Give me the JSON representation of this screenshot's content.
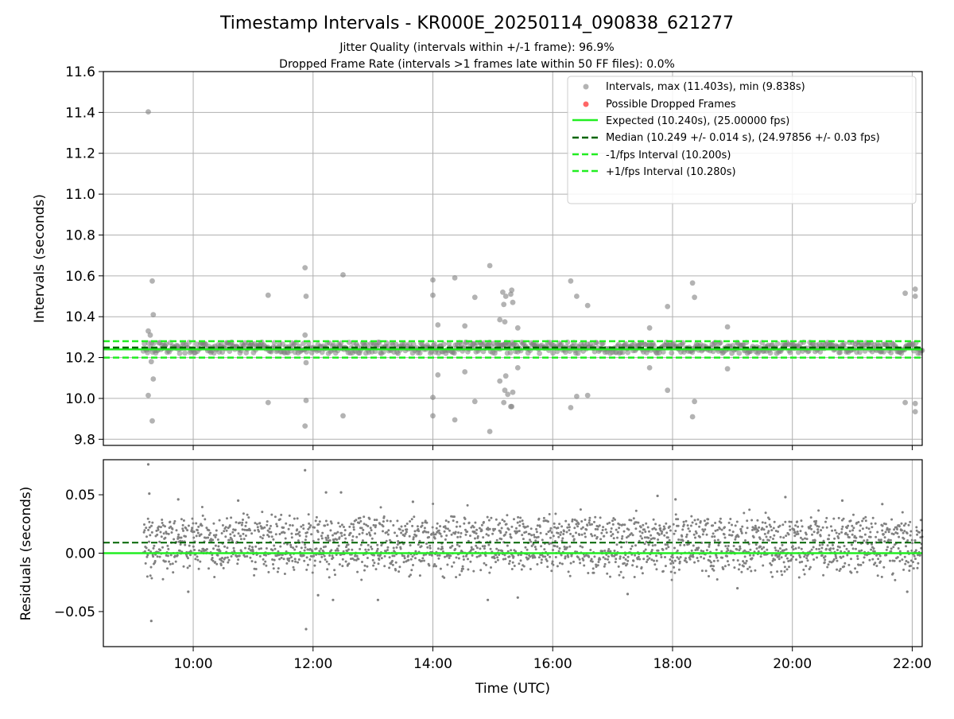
{
  "title": "Timestamp Intervals - KR000E_20250114_090838_621277",
  "subtitle_1": "Jitter Quality (intervals within +/-1 frame): 96.9%",
  "subtitle_2": "Dropped Frame Rate (intervals >1 frames late within 50 FF files): 0.0%",
  "colors": {
    "points": "#808080",
    "dropped": "#ff6666",
    "expected": "#22ee22",
    "median": "#006400",
    "bounds": "#22ee22",
    "grid": "#b0b0b0"
  },
  "chart_data": [
    {
      "type": "scatter",
      "panel": "top",
      "xlabel": "",
      "ylabel": "Intervals (seconds)",
      "xlim": [
        "08:30",
        "22:10"
      ],
      "ylim": [
        9.77,
        11.6
      ],
      "yticks": [
        "9.8",
        "10.0",
        "10.2",
        "10.4",
        "10.6",
        "10.8",
        "11.0",
        "11.2",
        "11.4",
        "11.6"
      ],
      "grid": true,
      "legend_position": "top-right",
      "legend": [
        "Intervals, max (11.403s), min (9.838s)",
        "Possible Dropped Frames",
        "Expected (10.240s), (25.00000 fps)",
        "Median (10.249 +/- 0.014 s), (24.97856 +/- 0.03 fps)",
        "-1/fps Interval (10.200s)",
        "+1/fps Interval (10.280s)"
      ],
      "reference_lines": {
        "expected": 10.24,
        "median": 10.249,
        "minus_one_fps": 10.2,
        "plus_one_fps": 10.28
      },
      "dense_band": {
        "x_start": "09:10",
        "x_end": "22:10",
        "y_low": 10.22,
        "y_high": 10.275
      },
      "outliers": [
        {
          "x": "09:15",
          "y": 11.403
        },
        {
          "x": "09:15",
          "y": 10.33
        },
        {
          "x": "09:17",
          "y": 10.31
        },
        {
          "x": "09:18",
          "y": 10.18
        },
        {
          "x": "09:15",
          "y": 10.015
        },
        {
          "x": "09:19",
          "y": 10.575
        },
        {
          "x": "09:20",
          "y": 10.41
        },
        {
          "x": "09:20",
          "y": 10.095
        },
        {
          "x": "09:19",
          "y": 9.89
        },
        {
          "x": "11:15",
          "y": 10.505
        },
        {
          "x": "11:15",
          "y": 9.98
        },
        {
          "x": "11:52",
          "y": 10.64
        },
        {
          "x": "11:53",
          "y": 10.5
        },
        {
          "x": "11:52",
          "y": 10.31
        },
        {
          "x": "11:53",
          "y": 10.175
        },
        {
          "x": "11:53",
          "y": 9.99
        },
        {
          "x": "11:52",
          "y": 9.865
        },
        {
          "x": "12:30",
          "y": 10.605
        },
        {
          "x": "12:30",
          "y": 9.915
        },
        {
          "x": "14:00",
          "y": 10.58
        },
        {
          "x": "14:00",
          "y": 10.505
        },
        {
          "x": "14:05",
          "y": 10.36
        },
        {
          "x": "14:05",
          "y": 10.115
        },
        {
          "x": "14:00",
          "y": 10.005
        },
        {
          "x": "14:00",
          "y": 9.915
        },
        {
          "x": "14:22",
          "y": 10.59
        },
        {
          "x": "14:22",
          "y": 9.895
        },
        {
          "x": "14:32",
          "y": 10.355
        },
        {
          "x": "14:32",
          "y": 10.13
        },
        {
          "x": "14:42",
          "y": 10.495
        },
        {
          "x": "14:42",
          "y": 9.985
        },
        {
          "x": "14:57",
          "y": 10.65
        },
        {
          "x": "14:57",
          "y": 9.838
        },
        {
          "x": "15:07",
          "y": 10.385
        },
        {
          "x": "15:07",
          "y": 10.085
        },
        {
          "x": "15:10",
          "y": 10.52
        },
        {
          "x": "15:11",
          "y": 10.46
        },
        {
          "x": "15:12",
          "y": 10.375
        },
        {
          "x": "15:13",
          "y": 10.5
        },
        {
          "x": "15:13",
          "y": 10.11
        },
        {
          "x": "15:12",
          "y": 10.04
        },
        {
          "x": "15:11",
          "y": 9.98
        },
        {
          "x": "15:15",
          "y": 10.02
        },
        {
          "x": "15:18",
          "y": 10.51
        },
        {
          "x": "15:19",
          "y": 10.53
        },
        {
          "x": "15:20",
          "y": 10.47
        },
        {
          "x": "15:18",
          "y": 9.96
        },
        {
          "x": "15:19",
          "y": 9.96
        },
        {
          "x": "15:20",
          "y": 10.03
        },
        {
          "x": "15:25",
          "y": 10.345
        },
        {
          "x": "15:25",
          "y": 10.15
        },
        {
          "x": "16:18",
          "y": 10.575
        },
        {
          "x": "16:18",
          "y": 9.955
        },
        {
          "x": "16:24",
          "y": 10.5
        },
        {
          "x": "16:24",
          "y": 10.01
        },
        {
          "x": "16:35",
          "y": 10.455
        },
        {
          "x": "16:35",
          "y": 10.015
        },
        {
          "x": "17:37",
          "y": 10.345
        },
        {
          "x": "17:37",
          "y": 10.15
        },
        {
          "x": "17:55",
          "y": 10.45
        },
        {
          "x": "17:55",
          "y": 10.04
        },
        {
          "x": "18:20",
          "y": 10.565
        },
        {
          "x": "18:22",
          "y": 10.495
        },
        {
          "x": "18:22",
          "y": 9.985
        },
        {
          "x": "18:20",
          "y": 9.91
        },
        {
          "x": "18:55",
          "y": 10.35
        },
        {
          "x": "18:55",
          "y": 10.145
        },
        {
          "x": "21:53",
          "y": 10.515
        },
        {
          "x": "21:53",
          "y": 9.98
        },
        {
          "x": "22:03",
          "y": 10.535
        },
        {
          "x": "22:03",
          "y": 10.5
        },
        {
          "x": "22:03",
          "y": 9.975
        },
        {
          "x": "22:03",
          "y": 9.935
        }
      ]
    },
    {
      "type": "scatter",
      "panel": "bottom",
      "xlabel": "Time (UTC)",
      "ylabel": "Residuals (seconds)",
      "xlim": [
        "08:30",
        "22:10"
      ],
      "ylim": [
        -0.08,
        0.08
      ],
      "yticks": [
        "−0.05",
        "0.00",
        "0.05"
      ],
      "xticks": [
        "10:00",
        "12:00",
        "14:00",
        "16:00",
        "18:00",
        "20:00",
        "22:00"
      ],
      "grid": true,
      "reference_lines": {
        "expected": 0.0,
        "median": 0.009
      },
      "residual_bands": [
        {
          "center": 0.02,
          "spread": 0.006,
          "share": 0.45
        },
        {
          "center": 0.0,
          "spread": 0.004,
          "share": 0.3
        },
        {
          "center": -0.01,
          "spread": 0.005,
          "share": 0.15
        },
        {
          "center": 0.01,
          "spread": 0.012,
          "share": 0.1
        }
      ],
      "outliers": [
        {
          "x": "09:15",
          "y": 0.076
        },
        {
          "x": "09:16",
          "y": 0.051
        },
        {
          "x": "09:18",
          "y": -0.058
        },
        {
          "x": "11:52",
          "y": 0.071
        },
        {
          "x": "11:53",
          "y": -0.065
        },
        {
          "x": "12:13",
          "y": 0.052
        },
        {
          "x": "12:28",
          "y": 0.052
        },
        {
          "x": "12:05",
          "y": -0.036
        },
        {
          "x": "12:20",
          "y": -0.04
        },
        {
          "x": "13:05",
          "y": -0.04
        },
        {
          "x": "14:55",
          "y": -0.04
        },
        {
          "x": "15:25",
          "y": -0.038
        },
        {
          "x": "17:15",
          "y": -0.035
        },
        {
          "x": "17:45",
          "y": 0.049
        },
        {
          "x": "18:03",
          "y": 0.046
        },
        {
          "x": "19:53",
          "y": 0.048
        },
        {
          "x": "09:45",
          "y": 0.046
        },
        {
          "x": "09:55",
          "y": -0.033
        },
        {
          "x": "10:45",
          "y": 0.045
        },
        {
          "x": "13:40",
          "y": 0.044
        },
        {
          "x": "20:50",
          "y": 0.045
        },
        {
          "x": "21:55",
          "y": -0.033
        },
        {
          "x": "21:30",
          "y": 0.042
        },
        {
          "x": "19:05",
          "y": -0.03
        }
      ]
    }
  ]
}
